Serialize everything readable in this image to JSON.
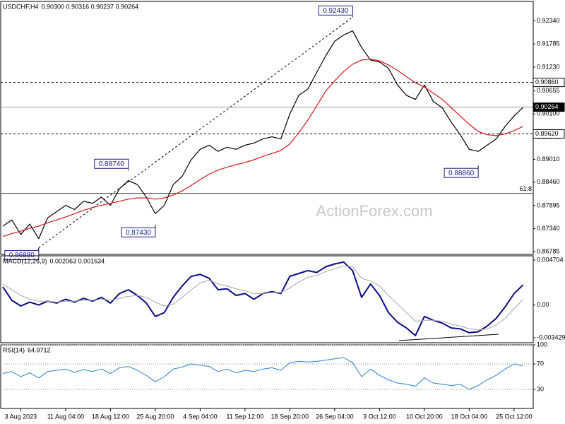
{
  "chart_data": [
    {
      "type": "line",
      "title": "USDCHF,H4",
      "subtitle": "0.90300 0.90316 0.90237 0.90264",
      "watermark": "ActionForex.com",
      "categories": [
        null,
        null,
        "3 Aug 2023",
        null,
        null,
        null,
        null,
        "11 Aug 04:00",
        null,
        null,
        null,
        null,
        "18 Aug 12:00",
        null,
        null,
        null,
        null,
        "25 Aug 20:00",
        null,
        null,
        null,
        null,
        "4 Sep 04:00",
        null,
        null,
        null,
        null,
        "11 Sep 12:00",
        null,
        null,
        null,
        null,
        "18 Sep 20:00",
        null,
        null,
        null,
        null,
        "26 Sep 04:00",
        null,
        null,
        null,
        null,
        "3 Oct 12:00",
        null,
        null,
        null,
        null,
        "10 Oct 20:00",
        null,
        null,
        null,
        null,
        "18 Oct 04:00",
        null,
        null,
        null,
        null,
        "25 Oct 12:00",
        null
      ],
      "series": [
        {
          "color": "#000000",
          "width": 1.2,
          "values": [
            0.874,
            0.8755,
            0.872,
            0.8745,
            0.871,
            0.876,
            0.8775,
            0.879,
            0.878,
            0.88,
            0.8795,
            0.881,
            0.879,
            0.883,
            0.885,
            0.884,
            0.881,
            0.877,
            0.879,
            0.884,
            0.886,
            0.89,
            0.8925,
            0.8935,
            0.892,
            0.893,
            0.8925,
            0.8935,
            0.894,
            0.895,
            0.8955,
            0.895,
            0.901,
            0.9055,
            0.907,
            0.911,
            0.915,
            0.9185,
            0.92,
            0.921,
            0.917,
            0.914,
            0.9135,
            0.912,
            0.908,
            0.9055,
            0.9045,
            0.908,
            0.904,
            0.9025,
            0.899,
            0.896,
            0.8925,
            0.892,
            0.8935,
            0.895,
            0.898,
            0.9005,
            0.9026
          ]
        },
        {
          "color": "#d81818",
          "width": 1.2,
          "values": [
            0.8715,
            0.8722,
            0.8728,
            0.8735,
            0.874,
            0.8748,
            0.8755,
            0.8762,
            0.877,
            0.8778,
            0.8785,
            0.879,
            0.8795,
            0.88,
            0.8805,
            0.8808,
            0.8808,
            0.8805,
            0.8808,
            0.8815,
            0.8825,
            0.8838,
            0.8852,
            0.8865,
            0.8875,
            0.8882,
            0.8888,
            0.8893,
            0.89,
            0.8908,
            0.8915,
            0.8922,
            0.8938,
            0.8965,
            0.8995,
            0.903,
            0.9065,
            0.909,
            0.9112,
            0.913,
            0.914,
            0.9142,
            0.9138,
            0.9128,
            0.9115,
            0.91,
            0.9085,
            0.9075,
            0.906,
            0.9045,
            0.9025,
            0.9005,
            0.8985,
            0.8968,
            0.896,
            0.8958,
            0.8962,
            0.897,
            0.898
          ]
        }
      ],
      "ylim": [
        0.8672,
        0.9281
      ],
      "yticks": [
        {
          "value": 0.9234,
          "label": "0.92340"
        },
        {
          "value": 0.91785,
          "label": "0.91785"
        },
        {
          "value": 0.9123,
          "label": "0.91230"
        },
        {
          "value": 0.90655,
          "label": "0.90655"
        },
        {
          "value": 0.901,
          "label": "0.90100"
        },
        {
          "value": 0.89545,
          "label": "0.89545"
        },
        {
          "value": 0.8901,
          "label": "0.89010"
        },
        {
          "value": 0.8846,
          "label": "0.88460"
        },
        {
          "value": 0.87895,
          "label": "0.87895"
        },
        {
          "value": 0.8734,
          "label": "0.87340"
        },
        {
          "value": 0.86785,
          "label": "0.86785"
        }
      ],
      "levels": [
        {
          "value": 0.9086,
          "label": "0.90860",
          "style": "dashed"
        },
        {
          "value": 0.8962,
          "label": "0.89620",
          "style": "dashed"
        },
        {
          "value": 0.90264,
          "label": "0.90264",
          "style": "current"
        }
      ],
      "fib_level": {
        "ratio": 61.8,
        "price": 0.8819
      },
      "annotations": [
        {
          "index": 39,
          "value": 0.9243,
          "label": "0.92430",
          "place": "above"
        },
        {
          "index": 14,
          "value": 0.8874,
          "label": "0.88740",
          "place": "above"
        },
        {
          "index": 17,
          "value": 0.8743,
          "label": "0.87430",
          "place": "below"
        },
        {
          "index": 4,
          "value": 0.8688,
          "label": "0.86880",
          "place": "below"
        },
        {
          "index": 53,
          "value": 0.8886,
          "label": "0.88860",
          "place": "below"
        }
      ],
      "grid": false
    },
    {
      "type": "line",
      "title": "MACD(12,26,9)",
      "subtitle": "0.002063 0.001634",
      "series": [
        {
          "color": "#0c0c8a",
          "width": 2,
          "values": [
            0.0019,
            0.0005,
            -0.0001,
            0.0003,
            0.0,
            0.0004,
            0.0002,
            0.0006,
            0.0003,
            0.0007,
            0.0004,
            0.0008,
            0.0002,
            0.0012,
            0.0016,
            0.001,
            0.0002,
            -0.0012,
            -0.0008,
            0.0008,
            0.002,
            0.003,
            0.0032,
            0.0028,
            0.0016,
            0.0017,
            0.001,
            0.0012,
            0.0006,
            0.0012,
            0.0014,
            0.0012,
            0.003,
            0.0033,
            0.0036,
            0.0034,
            0.004,
            0.0043,
            0.0045,
            0.0036,
            0.0008,
            0.0022,
            0.001,
            -0.0008,
            -0.0018,
            -0.0024,
            -0.0032,
            -0.0012,
            -0.0016,
            -0.0019,
            -0.0024,
            -0.0025,
            -0.0029,
            -0.0028,
            -0.0022,
            -0.0014,
            -0.0002,
            0.0012,
            0.0021
          ]
        },
        {
          "color": "#a8a8a8",
          "width": 1,
          "values": [
            0.0022,
            0.0016,
            0.001,
            0.0006,
            0.0004,
            0.0004,
            0.0003,
            0.0004,
            0.0004,
            0.0005,
            0.0005,
            0.0006,
            0.0005,
            0.0007,
            0.0009,
            0.001,
            0.0008,
            0.0003,
            -0.0001,
            0.0001,
            0.0008,
            0.0016,
            0.0023,
            0.0026,
            0.0022,
            0.002,
            0.0017,
            0.0015,
            0.0012,
            0.0012,
            0.0013,
            0.0013,
            0.0018,
            0.0024,
            0.0029,
            0.0031,
            0.0035,
            0.0038,
            0.0041,
            0.004,
            0.0028,
            0.0025,
            0.002,
            0.001,
            0.0001,
            -0.0008,
            -0.0017,
            -0.0016,
            -0.0016,
            -0.0017,
            -0.002,
            -0.0022,
            -0.0025,
            -0.0026,
            -0.0025,
            -0.0021,
            -0.0014,
            -0.0004,
            0.0006
          ]
        }
      ],
      "ylim": [
        -0.003947,
        0.005148
      ],
      "yticks": [
        0.004704,
        {
          "value": 0,
          "label": "0.00"
        },
        -0.003429
      ],
      "grid": false
    },
    {
      "type": "line",
      "title": "RSI(14)",
      "subtitle": "64.9712",
      "series": [
        {
          "color": "#2a7fd4",
          "width": 1,
          "values": [
            55,
            58,
            50,
            56,
            48,
            58,
            60,
            62,
            57,
            61,
            58,
            62,
            55,
            64,
            66,
            60,
            52,
            42,
            50,
            62,
            65,
            70,
            68,
            66,
            58,
            62,
            56,
            60,
            58,
            62,
            64,
            60,
            72,
            74,
            73,
            74,
            76,
            78,
            80,
            72,
            50,
            62,
            52,
            45,
            40,
            38,
            35,
            48,
            40,
            38,
            36,
            38,
            30,
            36,
            45,
            52,
            62,
            70,
            67
          ]
        }
      ],
      "ylim": [
        0,
        100
      ],
      "yticks": [
        100,
        70,
        30
      ],
      "grid": true
    }
  ]
}
